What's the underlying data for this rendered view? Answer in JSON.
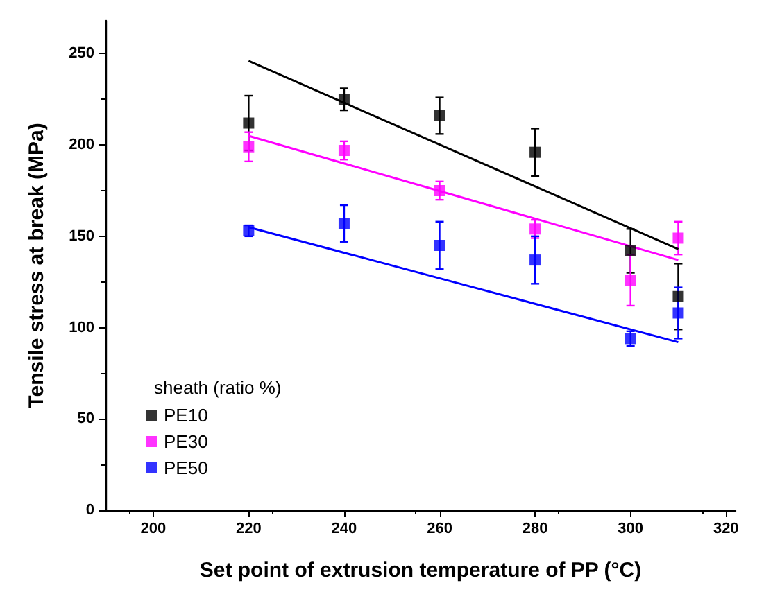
{
  "chart_data": {
    "type": "scatter",
    "xlabel": "Set point of extrusion temperature of PP (°C)",
    "ylabel": "Tensile stress at break (MPa)",
    "legend_title": "sheath (ratio %)",
    "x": [
      220,
      240,
      260,
      280,
      300,
      310
    ],
    "series": [
      {
        "name": "PE10",
        "color": "#000000",
        "values": [
          212,
          225,
          216,
          196,
          142,
          117
        ],
        "errors": [
          15,
          6,
          10,
          13,
          12,
          18
        ]
      },
      {
        "name": "PE30",
        "color": "#ff00ff",
        "values": [
          199,
          197,
          175,
          154,
          126,
          149
        ],
        "errors": [
          8,
          5,
          5,
          5,
          14,
          9
        ]
      },
      {
        "name": "PE50",
        "color": "#0000ff",
        "values": [
          153,
          157,
          145,
          137,
          94,
          108
        ],
        "errors": [
          3,
          10,
          13,
          13,
          4,
          14
        ]
      },
      {
        "type": "line",
        "marker": "none",
        "color": "#000000",
        "x": [
          220,
          265,
          310
        ],
        "values": [
          246,
          194.5,
          143
        ]
      },
      {
        "type": "line",
        "marker": "none",
        "color": "#ff00ff",
        "x": [
          220,
          265,
          310
        ],
        "values": [
          205,
          171,
          137
        ]
      },
      {
        "type": "line",
        "marker": "none",
        "color": "#0000ff",
        "x": [
          220,
          265,
          310
        ],
        "values": [
          155,
          123.5,
          92
        ]
      }
    ],
    "xlim": [
      190,
      322
    ],
    "xticks": [
      200,
      220,
      240,
      260,
      280,
      300,
      320
    ],
    "ylim": [
      0,
      268
    ],
    "yticks": [
      0,
      50,
      100,
      150,
      200,
      250
    ],
    "marker": "square",
    "legend": "bottom left",
    "grid": false
  }
}
